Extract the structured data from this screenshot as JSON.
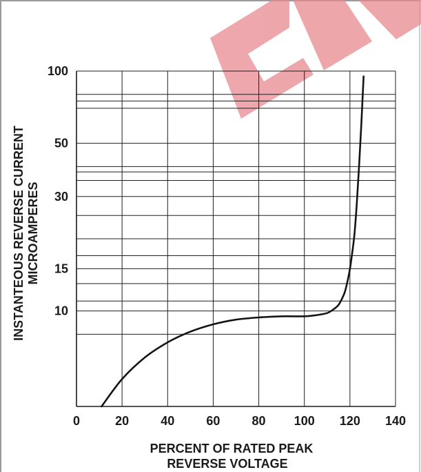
{
  "chart_data": {
    "type": "line",
    "title": "",
    "xlabel_lines": [
      "PERCENT OF RATED PEAK",
      "REVERSE VOLTAGE"
    ],
    "ylabel_lines": [
      "INSTANTEOUS REVERSE CURRENT",
      "MICROAMPERES"
    ],
    "x_ticks": [
      0,
      20,
      40,
      60,
      80,
      100,
      120,
      140
    ],
    "xlim": [
      0,
      140
    ],
    "y_tick_labels": [
      {
        "label": "100",
        "value": 100
      },
      {
        "label": "50",
        "value": 50
      },
      {
        "label": "30",
        "value": 30
      },
      {
        "label": "15",
        "value": 15
      },
      {
        "label": "10",
        "value": 10
      }
    ],
    "y_gridlines": [
      100,
      80,
      75,
      70,
      50,
      40,
      38,
      35,
      30,
      25,
      20,
      17,
      15,
      13,
      11,
      10,
      8
    ],
    "ylim": [
      4,
      100
    ],
    "grid": true,
    "series": [
      {
        "x": [
          11,
          20,
          30,
          40,
          50,
          60,
          70,
          80,
          90,
          100,
          105,
          110,
          113,
          115,
          117,
          118,
          119,
          120,
          121,
          122,
          123,
          124,
          125,
          126
        ],
        "y": [
          4,
          5.2,
          6.4,
          7.4,
          8.2,
          8.8,
          9.2,
          9.4,
          9.5,
          9.5,
          9.6,
          9.8,
          10.2,
          10.6,
          11.5,
          12.2,
          13.4,
          15,
          17.5,
          21,
          28,
          40,
          60,
          95
        ]
      }
    ],
    "line_color": "#141414",
    "watermark_color": "#e88a90"
  }
}
